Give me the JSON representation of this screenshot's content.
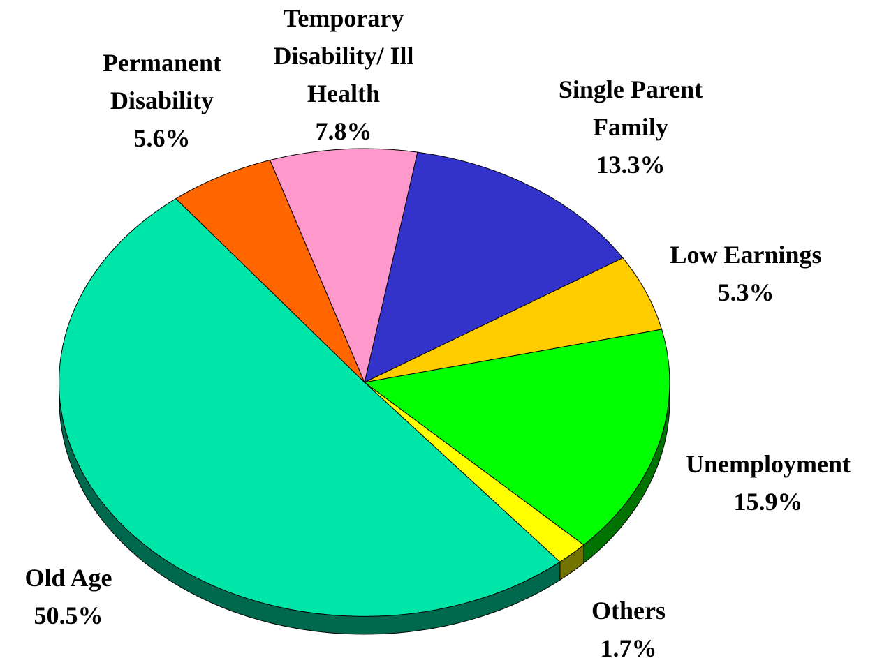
{
  "chart_data": {
    "type": "pie",
    "categories": [
      "Single Parent Family",
      "Low Earnings",
      "Unemployment",
      "Others",
      "Old Age",
      "Permanent Disability",
      "Temporary Disability/ Ill Health"
    ],
    "values": [
      13.3,
      5.3,
      15.9,
      1.7,
      50.5,
      5.6,
      7.8
    ],
    "value_labels": [
      "13.3%",
      "5.3%",
      "15.9%",
      "1.7%",
      "50.5%",
      "5.6%",
      "7.8%"
    ],
    "colors": [
      "#3333cc",
      "#ffcc00",
      "#00ff00",
      "#ffff00",
      "#00e6a8",
      "#ff6600",
      "#ff99cc"
    ]
  }
}
